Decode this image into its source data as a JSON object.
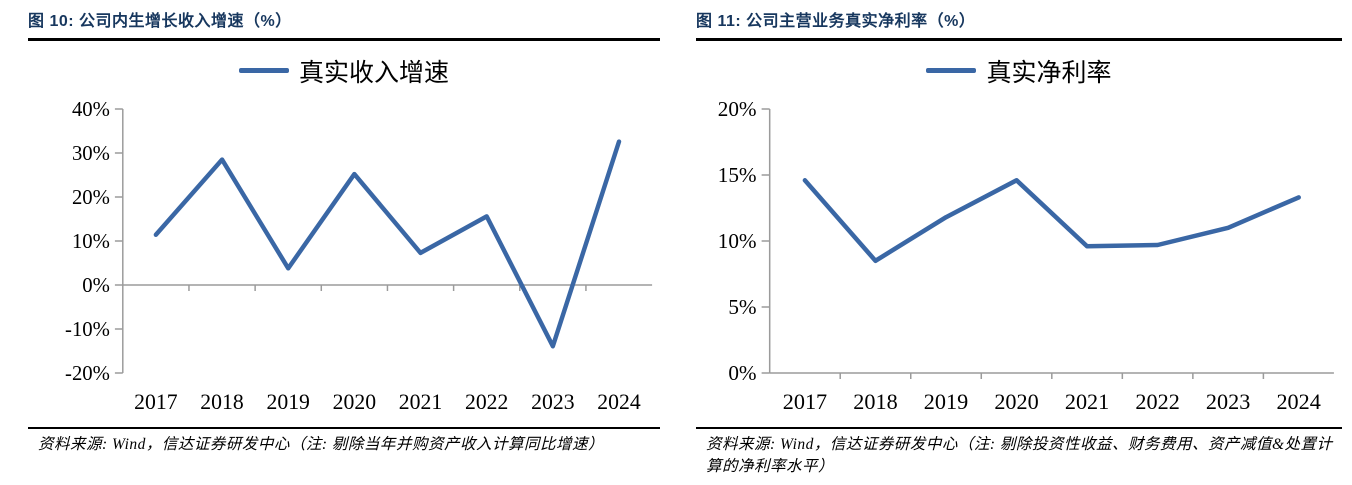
{
  "colors": {
    "accent_line": "#3A67A5",
    "title_text": "#17375E",
    "axis": "#9B9B9B",
    "rule": "#000000",
    "label_text": "#000000"
  },
  "figures": [
    {
      "title": "图 10: 公司内生增长收入增速（%）",
      "legend_label": "真实收入增速",
      "source_note": "资料来源: Wind，信达证券研发中心（注: 剔除当年并购资产收入计算同比增速）"
    },
    {
      "title": "图 11: 公司主营业务真实净利率（%）",
      "legend_label": "真实净利率",
      "source_note": "资料来源: Wind，信达证券研发中心（注: 剔除投资性收益、财务费用、资产减值&处置计算的净利率水平）"
    }
  ],
  "chart_data": [
    {
      "type": "line",
      "title": "图 10: 公司内生增长收入增速（%）",
      "categories": [
        "2017",
        "2018",
        "2019",
        "2020",
        "2021",
        "2022",
        "2023",
        "2024"
      ],
      "series": [
        {
          "name": "真实收入增速",
          "values": [
            11.4,
            28.5,
            3.8,
            25.2,
            7.3,
            15.6,
            -13.9,
            32.6
          ]
        }
      ],
      "xlabel": "",
      "ylabel": "",
      "ylim": [
        -20,
        40
      ],
      "yticks": [
        {
          "value": 40,
          "label": "40%"
        },
        {
          "value": 30,
          "label": "30%"
        },
        {
          "value": 20,
          "label": "20%"
        },
        {
          "value": 10,
          "label": "10%"
        },
        {
          "value": 0,
          "label": "0%"
        },
        {
          "value": -10,
          "label": "-10%"
        },
        {
          "value": -20,
          "label": "-20%"
        }
      ],
      "x_axis_at": 0,
      "grid": false,
      "legend_position": "top-center",
      "layout": {
        "ylabel_width": 96
      }
    },
    {
      "type": "line",
      "title": "图 11: 公司主营业务真实净利率（%）",
      "categories": [
        "2017",
        "2018",
        "2019",
        "2020",
        "2021",
        "2022",
        "2023",
        "2024"
      ],
      "series": [
        {
          "name": "真实净利率",
          "values": [
            14.6,
            8.5,
            11.8,
            14.6,
            9.6,
            9.7,
            11.0,
            13.3
          ]
        }
      ],
      "xlabel": "",
      "ylabel": "",
      "ylim": [
        0,
        20
      ],
      "yticks": [
        {
          "value": 20,
          "label": "20%"
        },
        {
          "value": 15,
          "label": "15%"
        },
        {
          "value": 10,
          "label": "10%"
        },
        {
          "value": 5,
          "label": "5%"
        },
        {
          "value": 0,
          "label": "0%"
        }
      ],
      "x_axis_at": 0,
      "grid": false,
      "legend_position": "top-center",
      "layout": {
        "ylabel_width": 73
      }
    }
  ]
}
